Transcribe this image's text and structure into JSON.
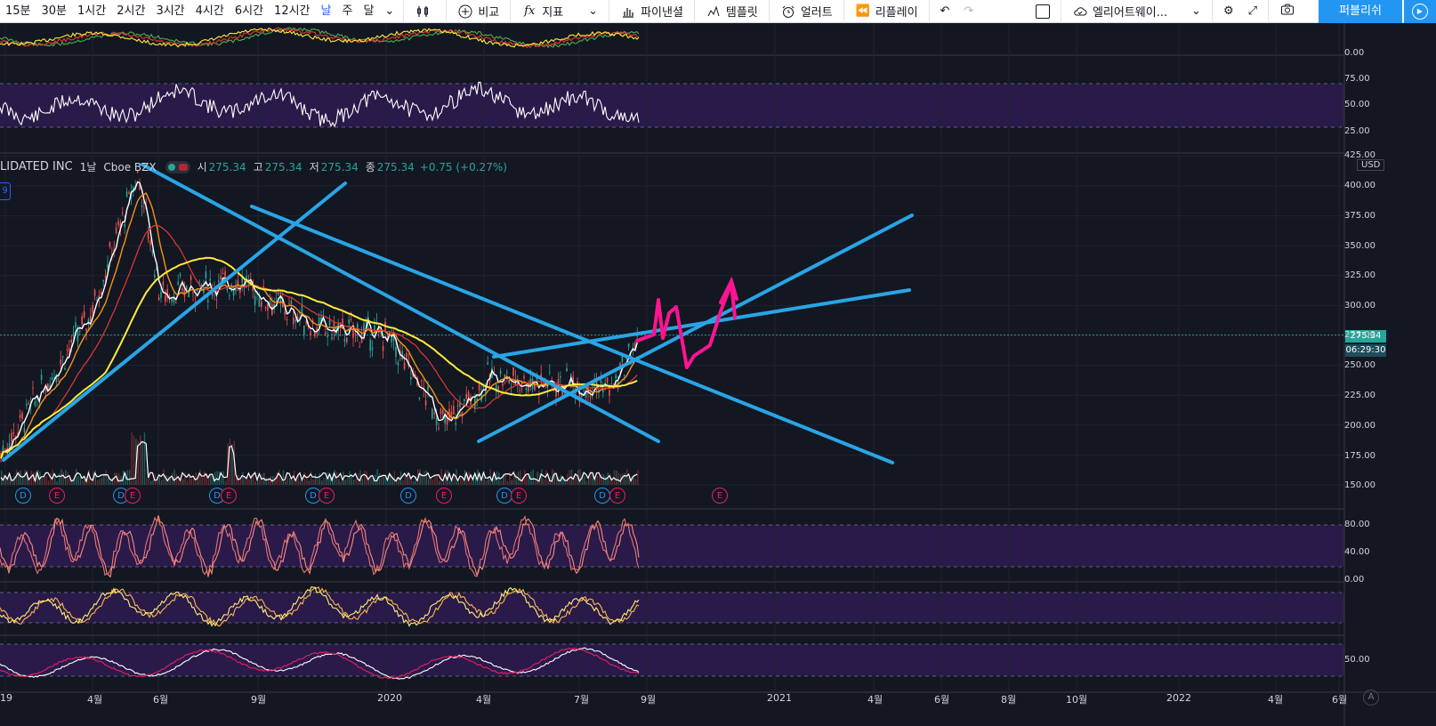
{
  "toolbar": {
    "timeframes": [
      "15분",
      "30분",
      "1시간",
      "2시간",
      "3시간",
      "4시간",
      "6시간",
      "12시간",
      "날",
      "주",
      "달"
    ],
    "active_timeframe": "날",
    "compare_label": "비교",
    "indicators_label": "지표",
    "financials_label": "파이낸셜",
    "templates_label": "템플릿",
    "alert_label": "얼러트",
    "replay_label": "리플레이",
    "alert_dropdown_label": "엘리어트웨이...",
    "publish_label": "퍼블리쉬"
  },
  "legend": {
    "symbol": "LIDATED INC",
    "interval": "1날",
    "exchange": "Cboe BZX",
    "open_key": "시",
    "open": "275.34",
    "high_key": "고",
    "high": "275.34",
    "low_key": "저",
    "low": "275.34",
    "close_key": "종",
    "close": "275.34",
    "change": "+0.75 (+0.27%)",
    "left_badge": "9"
  },
  "price_axis": {
    "currency": "USD",
    "last_price": "275.34",
    "countdown": "06:29:30",
    "labels": [
      "425.00",
      "400.00",
      "375.00",
      "350.00",
      "325.00",
      "300.00",
      "275.00",
      "250.00",
      "225.00",
      "200.00",
      "175.00",
      "150.00"
    ],
    "osc_top_labels": [
      "0.00"
    ],
    "rsi_labels": [
      "75.00",
      "50.00",
      "25.00"
    ],
    "stoch_labels": [
      "80.00",
      "40.00",
      "0.00"
    ],
    "bottom_osc_labels": [
      "50.00"
    ]
  },
  "time_axis": [
    "19",
    "4월",
    "6월",
    "9월",
    "2020",
    "4월",
    "7월",
    "9월",
    "2021",
    "4월",
    "6월",
    "8월",
    "10월",
    "2022",
    "4월",
    "6월"
  ],
  "events": [
    "D",
    "E",
    "D",
    "E",
    "D",
    "E",
    "D",
    "E",
    "D",
    "E",
    "D",
    "E",
    "D",
    "E",
    "E"
  ],
  "colors": {
    "background": "#131722",
    "trendline": "#29a5e6",
    "annotation": "#ff1493",
    "rsi_band": "#2a1a4a",
    "up": "#26a69a",
    "down": "#ef5350"
  },
  "chart_data": {
    "type": "line",
    "title": "",
    "price_series": [
      {
        "name": "",
        "x": [
          "2019-01",
          "2019-04",
          "2019-05",
          "2019-06",
          "2019-08",
          "2019-09",
          "2019-11",
          "2020-01",
          "2020-03",
          "2020-04",
          "2020-06",
          "2020-07",
          "2020-08"
        ],
        "values": [
          175,
          290,
          410,
          310,
          320,
          310,
          280,
          275,
          200,
          240,
          235,
          232,
          275
        ]
      }
    ],
    "ylim": [
      140,
      425
    ],
    "rsi_levels": [
      75,
      50,
      25
    ],
    "stoch_levels": [
      80,
      40,
      0
    ]
  },
  "bottom_axis_icon": "A"
}
